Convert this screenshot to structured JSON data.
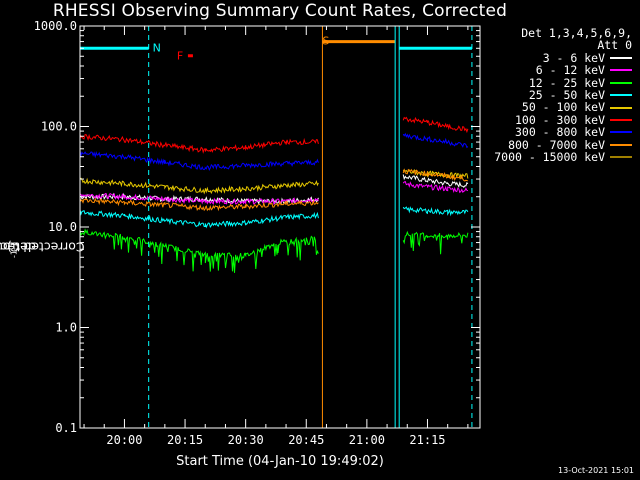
{
  "page": {
    "title": "RHESSI Observing Summary Count Rates, Corrected",
    "footer_date": "13-Oct-2021 15:01"
  },
  "chart_data": {
    "type": "line",
    "title": "RHESSI Observing Summary Count Rates, Corrected",
    "xlabel": "Start Time (04-Jan-10 19:49:02)",
    "ylabel_main": "Corrected Count Rate (s",
    "ylabel_sup1": "-1",
    "ylabel_mid": " detector",
    "ylabel_sup2": "-1",
    "ylabel_end": ")",
    "y_scale": "log",
    "ylim": [
      0.1,
      1000
    ],
    "y_ticks": [
      "0.1",
      "1.0",
      "10.0",
      "100.0",
      "1000.0"
    ],
    "xlim": [
      "19:49",
      "21:28"
    ],
    "x_ticks": [
      "20:00",
      "20:15",
      "20:30",
      "20:45",
      "21:00",
      "21:15"
    ],
    "grid": false,
    "legend_position": "top-right",
    "legend_header": [
      "Det 1,3,4,5,6,9,",
      "Att 0"
    ],
    "series": [
      {
        "name": "3 - 6 keV",
        "color": "#ffffff",
        "points": [
          [
            "19:49",
            20
          ],
          [
            "20:00",
            20
          ],
          [
            "20:10",
            19
          ],
          [
            "20:20",
            19
          ],
          [
            "20:30",
            18
          ],
          [
            "20:40",
            18
          ],
          [
            "20:48",
            19
          ],
          null,
          [
            "21:09",
            32
          ],
          [
            "21:15",
            29
          ],
          [
            "21:20",
            27
          ],
          [
            "21:25",
            26
          ]
        ]
      },
      {
        "name": "6 - 12 keV",
        "color": "#ff00ff",
        "points": [
          [
            "19:49",
            21
          ],
          [
            "20:00",
            20
          ],
          [
            "20:10",
            19
          ],
          [
            "20:20",
            18
          ],
          [
            "20:30",
            18
          ],
          [
            "20:40",
            18
          ],
          [
            "20:48",
            19
          ],
          null,
          [
            "21:09",
            27
          ],
          [
            "21:15",
            25
          ],
          [
            "21:20",
            24
          ],
          [
            "21:25",
            23
          ]
        ]
      },
      {
        "name": "12 - 25 keV",
        "color": "#00ff00",
        "points": [
          [
            "19:49",
            9
          ],
          [
            "20:00",
            8
          ],
          [
            "20:10",
            6.5
          ],
          [
            "20:20",
            5.3
          ],
          [
            "20:30",
            5.2
          ],
          [
            "20:38",
            7
          ],
          [
            "20:45",
            7.5
          ],
          [
            "20:48",
            7.8
          ],
          null,
          [
            "21:09",
            8.5
          ],
          [
            "21:15",
            8.2
          ],
          [
            "21:20",
            8.2
          ],
          [
            "21:25",
            8.3
          ]
        ]
      },
      {
        "name": "25 - 50 keV",
        "color": "#00ffff",
        "points": [
          [
            "19:49",
            14
          ],
          [
            "20:00",
            13
          ],
          [
            "20:10",
            11.5
          ],
          [
            "20:20",
            10.5
          ],
          [
            "20:30",
            11
          ],
          [
            "20:40",
            12.5
          ],
          [
            "20:48",
            13
          ],
          null,
          [
            "21:09",
            15
          ],
          [
            "21:15",
            14.5
          ],
          [
            "21:20",
            14
          ],
          [
            "21:25",
            14
          ]
        ]
      },
      {
        "name": "50 - 100 keV",
        "color": "#e6c800",
        "points": [
          [
            "19:49",
            29
          ],
          [
            "20:00",
            27
          ],
          [
            "20:10",
            25
          ],
          [
            "20:20",
            23
          ],
          [
            "20:30",
            24
          ],
          [
            "20:40",
            26
          ],
          [
            "20:48",
            27
          ],
          null,
          [
            "21:09",
            36
          ],
          [
            "21:15",
            34
          ],
          [
            "21:20",
            33
          ],
          [
            "21:25",
            32
          ]
        ]
      },
      {
        "name": "100 - 300 keV",
        "color": "#ff0000",
        "points": [
          [
            "19:49",
            80
          ],
          [
            "20:00",
            74
          ],
          [
            "20:10",
            65
          ],
          [
            "20:20",
            58
          ],
          [
            "20:30",
            62
          ],
          [
            "20:40",
            70
          ],
          [
            "20:48",
            70
          ],
          null,
          [
            "21:09",
            120
          ],
          [
            "21:15",
            110
          ],
          [
            "21:20",
            100
          ],
          [
            "21:25",
            93
          ]
        ]
      },
      {
        "name": "300 - 800 keV",
        "color": "#0000ff",
        "points": [
          [
            "19:49",
            54
          ],
          [
            "20:00",
            50
          ],
          [
            "20:10",
            44
          ],
          [
            "20:20",
            39
          ],
          [
            "20:30",
            41
          ],
          [
            "20:40",
            43
          ],
          [
            "20:48",
            44
          ],
          null,
          [
            "21:09",
            82
          ],
          [
            "21:15",
            75
          ],
          [
            "21:20",
            70
          ],
          [
            "21:25",
            64
          ]
        ]
      },
      {
        "name": "800 - 7000 keV",
        "color": "#ff8c00",
        "points": [
          [
            "19:49",
            18.5
          ],
          [
            "20:00",
            17.5
          ],
          [
            "20:10",
            16.5
          ],
          [
            "20:20",
            15.5
          ],
          [
            "20:30",
            16
          ],
          [
            "20:40",
            17
          ],
          [
            "20:48",
            17.5
          ],
          null,
          [
            "21:09",
            36
          ],
          [
            "21:15",
            34
          ],
          [
            "21:20",
            32
          ],
          [
            "21:25",
            30
          ]
        ]
      },
      {
        "name": "7000 - 15000 keV",
        "color": "#a08000",
        "points": []
      }
    ],
    "annotations": [
      {
        "label": "N",
        "color": "#00ffff",
        "x": "20:06",
        "y": 600
      },
      {
        "label": "F",
        "color": "#ff0000",
        "x": "20:12",
        "y": 500
      },
      {
        "label": "S",
        "color": "#ff8c00",
        "x": "20:48",
        "y": 700
      }
    ],
    "night_intervals": [
      [
        "19:49",
        "20:06"
      ],
      [
        "21:08",
        "21:26"
      ]
    ],
    "saa_interval": [
      "20:49",
      "21:07"
    ]
  }
}
